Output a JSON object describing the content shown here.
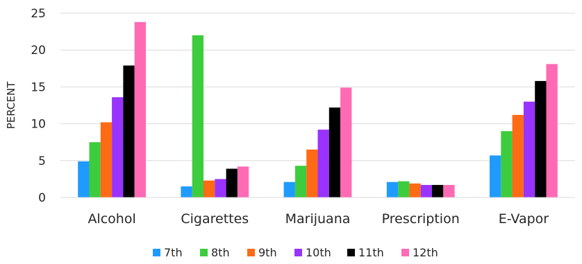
{
  "chart_data": {
    "type": "bar",
    "title": "",
    "xlabel": "",
    "ylabel": "PERCENT",
    "ylim": [
      0,
      25
    ],
    "yticks": [
      0,
      5,
      10,
      15,
      20,
      25
    ],
    "grid": true,
    "legend_position": "bottom",
    "categories": [
      "Alcohol",
      "Cigarettes",
      "Marijuana",
      "Prescription",
      "E-Vapor"
    ],
    "series": [
      {
        "name": "7th",
        "color": "#1f9bff",
        "values": [
          4.9,
          1.5,
          2.1,
          2.1,
          5.7
        ]
      },
      {
        "name": "8th",
        "color": "#3dcc3d",
        "values": [
          7.5,
          22.0,
          4.3,
          2.2,
          9.0
        ]
      },
      {
        "name": "9th",
        "color": "#ff6a14",
        "values": [
          10.2,
          2.3,
          6.5,
          1.9,
          11.2
        ]
      },
      {
        "name": "10th",
        "color": "#9933ff",
        "values": [
          13.6,
          2.5,
          9.2,
          1.7,
          13.0
        ]
      },
      {
        "name": "11th",
        "color": "#000000",
        "values": [
          17.9,
          3.9,
          12.2,
          1.7,
          15.8
        ]
      },
      {
        "name": "12th",
        "color": "#ff6ab5",
        "values": [
          23.8,
          4.2,
          14.9,
          1.7,
          18.1
        ]
      }
    ]
  }
}
